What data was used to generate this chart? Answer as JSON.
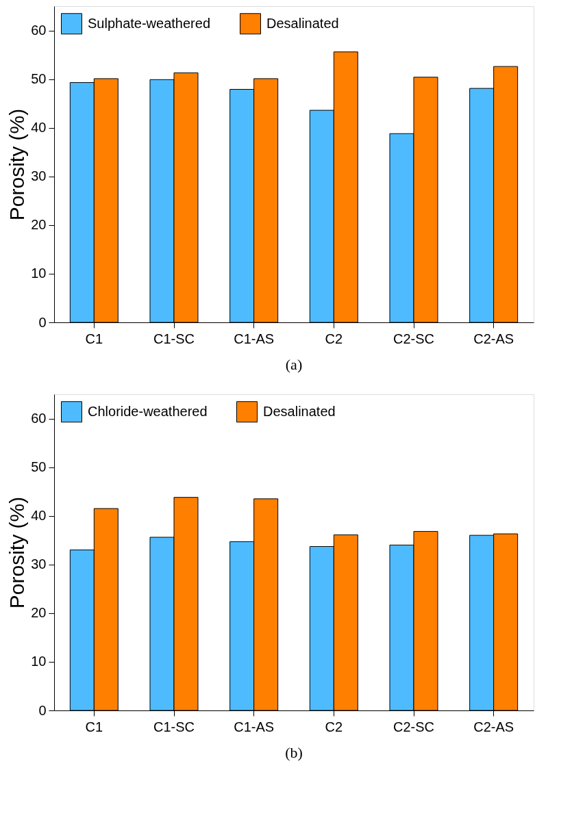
{
  "chart_data": [
    {
      "type": "bar",
      "categories": [
        "C1",
        "C1-SC",
        "C1-AS",
        "C2",
        "C2-SC",
        "C2-AS"
      ],
      "ylabel": "Porosity (%)",
      "ylim": [
        0,
        65
      ],
      "yticks": [
        0,
        10,
        20,
        30,
        40,
        50,
        60
      ],
      "legend": "top left",
      "grid": false,
      "annotations": [
        "(a)"
      ],
      "series": [
        {
          "name": "Sulphate-weathered",
          "color": "#4fbbff",
          "values": [
            49.3,
            49.9,
            47.9,
            43.6,
            38.8,
            48.1
          ]
        },
        {
          "name": "Desalinated",
          "color": "#ff7f00",
          "values": [
            50.1,
            51.3,
            50.1,
            55.6,
            50.4,
            52.6
          ]
        }
      ]
    },
    {
      "type": "bar",
      "categories": [
        "C1",
        "C1-SC",
        "C1-AS",
        "C2",
        "C2-SC",
        "C2-AS"
      ],
      "ylabel": "Porosity (%)",
      "ylim": [
        0,
        65
      ],
      "yticks": [
        0,
        10,
        20,
        30,
        40,
        50,
        60
      ],
      "legend": "top left",
      "grid": false,
      "annotations": [
        "(b)"
      ],
      "series": [
        {
          "name": "Chloride-weathered",
          "color": "#4fbbff",
          "values": [
            33.0,
            35.6,
            34.7,
            33.7,
            34.0,
            36.0
          ]
        },
        {
          "name": "Desalinated",
          "color": "#ff7f00",
          "values": [
            41.5,
            43.8,
            43.5,
            36.1,
            36.8,
            36.3
          ]
        }
      ]
    }
  ]
}
